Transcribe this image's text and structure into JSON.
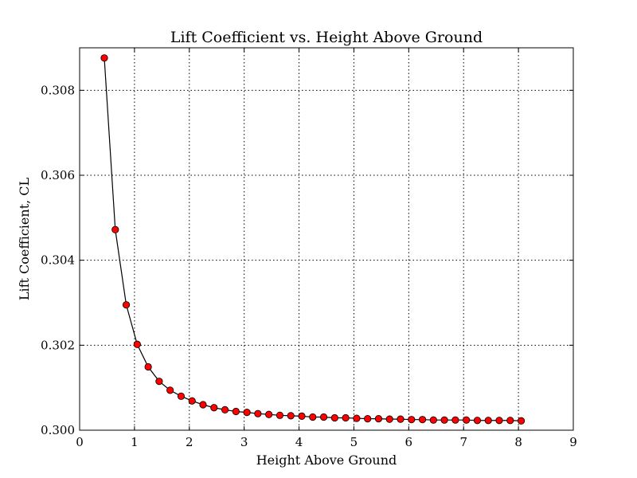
{
  "chart_data": {
    "type": "line",
    "title": "Lift Coefficient vs. Height Above Ground",
    "xlabel": "Height Above Ground",
    "ylabel": "Lift Coefficient, CL",
    "xlim": [
      0,
      9
    ],
    "ylim": [
      0.3,
      0.309
    ],
    "xticks": [
      0,
      1,
      2,
      3,
      4,
      5,
      6,
      7,
      8,
      9
    ],
    "xtick_labels": [
      "0",
      "1",
      "2",
      "3",
      "4",
      "5",
      "6",
      "7",
      "8",
      "9"
    ],
    "yticks": [
      0.3,
      0.302,
      0.304,
      0.306,
      0.308
    ],
    "ytick_labels": [
      "0.300",
      "0.302",
      "0.304",
      "0.306",
      "0.308"
    ],
    "grid": true,
    "line_color": "#000000",
    "marker_color": "#ff0000",
    "marker_edge_color": "#000000",
    "series": [
      {
        "x": [
          0.45,
          0.65,
          0.85,
          1.05,
          1.25,
          1.45,
          1.65,
          1.85,
          2.05,
          2.25,
          2.45,
          2.65,
          2.85,
          3.05,
          3.25,
          3.45,
          3.65,
          3.85,
          4.05,
          4.25,
          4.45,
          4.65,
          4.85,
          5.05,
          5.25,
          5.45,
          5.65,
          5.85,
          6.05,
          6.25,
          6.45,
          6.65,
          6.85,
          7.05,
          7.25,
          7.45,
          7.65,
          7.85,
          8.05
        ],
        "y": [
          0.30876,
          0.30472,
          0.30295,
          0.30202,
          0.30149,
          0.30115,
          0.30094,
          0.3008,
          0.30069,
          0.3006,
          0.30053,
          0.30048,
          0.30044,
          0.30042,
          0.30039,
          0.30037,
          0.30035,
          0.30034,
          0.30033,
          0.30031,
          0.30031,
          0.30029,
          0.30029,
          0.30028,
          0.30027,
          0.30027,
          0.30026,
          0.30026,
          0.30025,
          0.30025,
          0.30024,
          0.30024,
          0.30024,
          0.30024,
          0.30023,
          0.30023,
          0.30023,
          0.30023,
          0.30022
        ]
      }
    ]
  }
}
